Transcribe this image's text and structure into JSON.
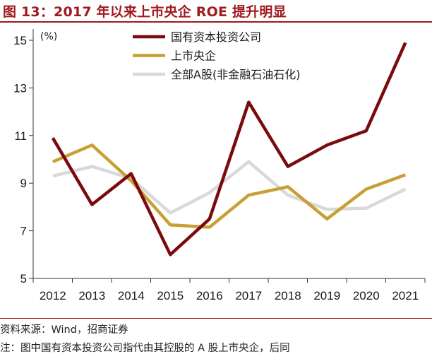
{
  "figure": {
    "title": "图 13：2017 年以来上市央企 ROE 提升明显",
    "source": "资料来源：Wind，招商证券",
    "note": "注：图中国有资本投资公司指代由其控股的 A 股上市央企，后同"
  },
  "chart_data": {
    "type": "line",
    "unit": "(%)",
    "x": [
      "2012",
      "2013",
      "2014",
      "2015",
      "2016",
      "2017",
      "2018",
      "2019",
      "2020",
      "2021"
    ],
    "ylim": [
      5,
      15
    ],
    "yticks": [
      5,
      7,
      9,
      11,
      13,
      15
    ],
    "grid": false,
    "legend_position": "top-right",
    "series": [
      {
        "name": "国有资本投资公司",
        "color": "#7b0a0e",
        "values": [
          10.9,
          8.1,
          9.4,
          6.0,
          7.5,
          12.4,
          9.7,
          10.6,
          11.2,
          14.9
        ]
      },
      {
        "name": "上市央企",
        "color": "#c8a033",
        "values": [
          9.9,
          10.6,
          9.1,
          7.25,
          7.15,
          8.5,
          8.85,
          7.5,
          8.75,
          9.35
        ]
      },
      {
        "name": "全部A股(非金融石油石化)",
        "color": "#d9d9d9",
        "values": [
          9.3,
          9.7,
          9.2,
          7.75,
          8.6,
          9.9,
          8.5,
          7.9,
          7.95,
          8.75
        ]
      }
    ]
  }
}
